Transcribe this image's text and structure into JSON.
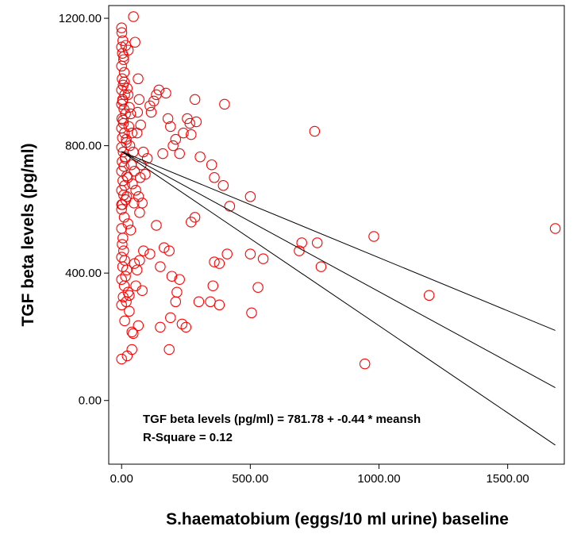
{
  "chart_data": {
    "type": "scatter",
    "xlabel": "S.haematobium (eggs/10 ml urine) baseline",
    "ylabel": "TGF beta levels (pg/ml)",
    "xlim": [
      -50,
      1720
    ],
    "ylim": [
      -200,
      1240
    ],
    "x_ticks": [
      {
        "value": 0,
        "label": "0.00"
      },
      {
        "value": 500,
        "label": "500.00"
      },
      {
        "value": 1000,
        "label": "1000.00"
      },
      {
        "value": 1500,
        "label": "1500.00"
      }
    ],
    "y_ticks": [
      {
        "value": 0,
        "label": "0.00"
      },
      {
        "value": 400,
        "label": "400.00"
      },
      {
        "value": 800,
        "label": "800.00"
      },
      {
        "value": 1200,
        "label": "1200.00"
      }
    ],
    "grid": false,
    "marker_color": "#ff0000",
    "line_color": "#000000",
    "regression": {
      "intercept": 781.78,
      "slope": -0.44,
      "x_range": [
        0,
        1685
      ],
      "ci_lower_end": -140,
      "ci_upper_end": 220,
      "equation": "TGF beta levels (pg/ml) = 781.78 + -0.44 * meansh",
      "r_square": "R-Square = 0.12"
    },
    "points": [
      [
        0,
        1170
      ],
      [
        5,
        1130
      ],
      [
        0,
        1110
      ],
      [
        3,
        1090
      ],
      [
        8,
        1070
      ],
      [
        0,
        1050
      ],
      [
        10,
        1030
      ],
      [
        2,
        1010
      ],
      [
        6,
        990
      ],
      [
        0,
        975
      ],
      [
        12,
        960
      ],
      [
        4,
        945
      ],
      [
        0,
        930
      ],
      [
        9,
        915
      ],
      [
        15,
        900
      ],
      [
        1,
        885
      ],
      [
        7,
        870
      ],
      [
        0,
        855
      ],
      [
        11,
        840
      ],
      [
        3,
        825
      ],
      [
        18,
        810
      ],
      [
        0,
        795
      ],
      [
        6,
        780
      ],
      [
        14,
        765
      ],
      [
        2,
        750
      ],
      [
        9,
        735
      ],
      [
        0,
        720
      ],
      [
        20,
        705
      ],
      [
        5,
        690
      ],
      [
        12,
        675
      ],
      [
        0,
        660
      ],
      [
        8,
        645
      ],
      [
        16,
        630
      ],
      [
        3,
        615
      ],
      [
        0,
        600
      ],
      [
        10,
        1000
      ],
      [
        22,
        980
      ],
      [
        25,
        960
      ],
      [
        4,
        940
      ],
      [
        30,
        920
      ],
      [
        35,
        900
      ],
      [
        6,
        880
      ],
      [
        28,
        860
      ],
      [
        40,
        840
      ],
      [
        18,
        820
      ],
      [
        32,
        800
      ],
      [
        45,
        780
      ],
      [
        14,
        760
      ],
      [
        38,
        740
      ],
      [
        50,
        720
      ],
      [
        24,
        700
      ],
      [
        42,
        680
      ],
      [
        55,
        660
      ],
      [
        20,
        640
      ],
      [
        48,
        620
      ],
      [
        60,
        840
      ],
      [
        26,
        1100
      ],
      [
        8,
        1080
      ],
      [
        1,
        1155
      ],
      [
        16,
        1115
      ],
      [
        46,
        1205
      ],
      [
        52,
        1125
      ],
      [
        64,
        1010
      ],
      [
        68,
        945
      ],
      [
        62,
        905
      ],
      [
        74,
        865
      ],
      [
        76,
        740
      ],
      [
        72,
        700
      ],
      [
        66,
        640
      ],
      [
        80,
        620
      ],
      [
        84,
        780
      ],
      [
        92,
        710
      ],
      [
        100,
        760
      ],
      [
        110,
        925
      ],
      [
        115,
        905
      ],
      [
        125,
        940
      ],
      [
        135,
        960
      ],
      [
        145,
        975
      ],
      [
        160,
        775
      ],
      [
        172,
        965
      ],
      [
        180,
        885
      ],
      [
        190,
        860
      ],
      [
        200,
        800
      ],
      [
        210,
        820
      ],
      [
        225,
        775
      ],
      [
        240,
        840
      ],
      [
        255,
        885
      ],
      [
        265,
        870
      ],
      [
        270,
        835
      ],
      [
        285,
        945
      ],
      [
        290,
        875
      ],
      [
        305,
        765
      ],
      [
        350,
        740
      ],
      [
        360,
        700
      ],
      [
        395,
        675
      ],
      [
        400,
        930
      ],
      [
        420,
        610
      ],
      [
        500,
        640
      ],
      [
        750,
        845
      ],
      [
        0,
        540
      ],
      [
        5,
        510
      ],
      [
        2,
        490
      ],
      [
        8,
        470
      ],
      [
        0,
        450
      ],
      [
        12,
        440
      ],
      [
        4,
        420
      ],
      [
        20,
        410
      ],
      [
        15,
        390
      ],
      [
        0,
        380
      ],
      [
        10,
        360
      ],
      [
        25,
        340
      ],
      [
        6,
        325
      ],
      [
        18,
        310
      ],
      [
        0,
        300
      ],
      [
        30,
        280
      ],
      [
        12,
        250
      ],
      [
        45,
        210
      ],
      [
        40,
        160
      ],
      [
        22,
        140
      ],
      [
        0,
        130
      ],
      [
        30,
        330
      ],
      [
        50,
        430
      ],
      [
        60,
        410
      ],
      [
        70,
        440
      ],
      [
        85,
        470
      ],
      [
        55,
        360
      ],
      [
        80,
        345
      ],
      [
        110,
        460
      ],
      [
        135,
        550
      ],
      [
        150,
        420
      ],
      [
        165,
        480
      ],
      [
        185,
        470
      ],
      [
        195,
        390
      ],
      [
        210,
        310
      ],
      [
        215,
        340
      ],
      [
        225,
        380
      ],
      [
        235,
        240
      ],
      [
        250,
        230
      ],
      [
        270,
        560
      ],
      [
        285,
        575
      ],
      [
        300,
        310
      ],
      [
        345,
        310
      ],
      [
        355,
        360
      ],
      [
        360,
        435
      ],
      [
        380,
        300
      ],
      [
        380,
        430
      ],
      [
        410,
        460
      ],
      [
        500,
        460
      ],
      [
        505,
        275
      ],
      [
        530,
        355
      ],
      [
        550,
        445
      ],
      [
        690,
        470
      ],
      [
        700,
        495
      ],
      [
        760,
        495
      ],
      [
        775,
        420
      ],
      [
        945,
        115
      ],
      [
        980,
        515
      ],
      [
        1195,
        330
      ],
      [
        1685,
        540
      ],
      [
        150,
        230
      ],
      [
        185,
        160
      ],
      [
        190,
        260
      ],
      [
        65,
        235
      ],
      [
        40,
        215
      ],
      [
        25,
        555
      ],
      [
        10,
        575
      ],
      [
        35,
        535
      ],
      [
        0,
        615
      ],
      [
        70,
        590
      ]
    ]
  }
}
